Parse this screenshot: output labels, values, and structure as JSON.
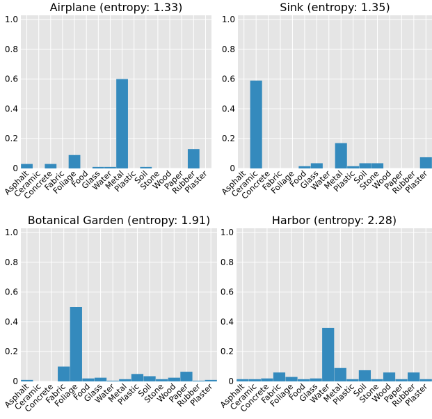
{
  "figure": {
    "colors": {
      "bar": "#348abd",
      "panel_bg": "#e5e5e5",
      "grid": "#ffffff"
    }
  },
  "chart_data": [
    {
      "type": "bar",
      "title": "Airplane (entropy: 1.33)",
      "categories": [
        "Asphalt",
        "Ceramic",
        "Concrete",
        "Fabric",
        "Foliage",
        "Food",
        "Glass",
        "Water",
        "Metal",
        "Plastic",
        "Soil",
        "Stone",
        "Wood",
        "Paper",
        "Rubber",
        "Plaster"
      ],
      "values": [
        0.03,
        0.0,
        0.03,
        0.0,
        0.09,
        0.0,
        0.01,
        0.01,
        0.6,
        0.0,
        0.01,
        0.0,
        0.0,
        0.0,
        0.13,
        0.0
      ],
      "yticks": [
        "0",
        "0.2",
        "0.4",
        "0.6",
        "0.8",
        "1.0"
      ],
      "ylim": [
        0,
        1.0
      ],
      "grid": true
    },
    {
      "type": "bar",
      "title": "Sink (entropy: 1.35)",
      "categories": [
        "Asphalt",
        "Ceramic",
        "Concrete",
        "Fabric",
        "Foliage",
        "Food",
        "Glass",
        "Water",
        "Metal",
        "Plastic",
        "Soil",
        "Stone",
        "Wood",
        "Paper",
        "Rubber",
        "Plaster"
      ],
      "values": [
        0.0,
        0.59,
        0.0,
        0.0,
        0.0,
        0.015,
        0.035,
        0.0,
        0.17,
        0.015,
        0.035,
        0.035,
        0.0,
        0.0,
        0.0,
        0.075
      ],
      "yticks": [
        "0",
        "0.2",
        "0.4",
        "0.6",
        "0.8",
        "1.0"
      ],
      "ylim": [
        0,
        1.0
      ],
      "grid": true
    },
    {
      "type": "bar",
      "title": "Botanical Garden (entropy: 1.91)",
      "categories": [
        "Asphalt",
        "Ceramic",
        "Concrete",
        "Fabric",
        "Foliage",
        "Food",
        "Glass",
        "Water",
        "Metal",
        "Plastic",
        "Soil",
        "Stone",
        "Wood",
        "Paper",
        "Rubber",
        "Plaster"
      ],
      "values": [
        0.01,
        0.0,
        0.0,
        0.1,
        0.5,
        0.02,
        0.025,
        0.005,
        0.015,
        0.05,
        0.035,
        0.015,
        0.025,
        0.065,
        0.005,
        0.01
      ],
      "yticks": [
        "0",
        "0.2",
        "0.4",
        "0.6",
        "0.8",
        "1.0"
      ],
      "ylim": [
        0,
        1.0
      ],
      "grid": true
    },
    {
      "type": "bar",
      "title": "Harbor (entropy: 2.28)",
      "categories": [
        "Asphalt",
        "Ceramic",
        "Concrete",
        "Fabric",
        "Foliage",
        "Food",
        "Glass",
        "Water",
        "Metal",
        "Plastic",
        "Soil",
        "Stone",
        "Wood",
        "Paper",
        "Rubber",
        "Plaster"
      ],
      "values": [
        0.015,
        0.015,
        0.02,
        0.06,
        0.03,
        0.015,
        0.02,
        0.36,
        0.09,
        0.015,
        0.075,
        0.015,
        0.06,
        0.015,
        0.06,
        0.015
      ],
      "yticks": [
        "0",
        "0.2",
        "0.4",
        "0.6",
        "0.8",
        "1.0"
      ],
      "ylim": [
        0,
        1.0
      ],
      "grid": true
    }
  ]
}
